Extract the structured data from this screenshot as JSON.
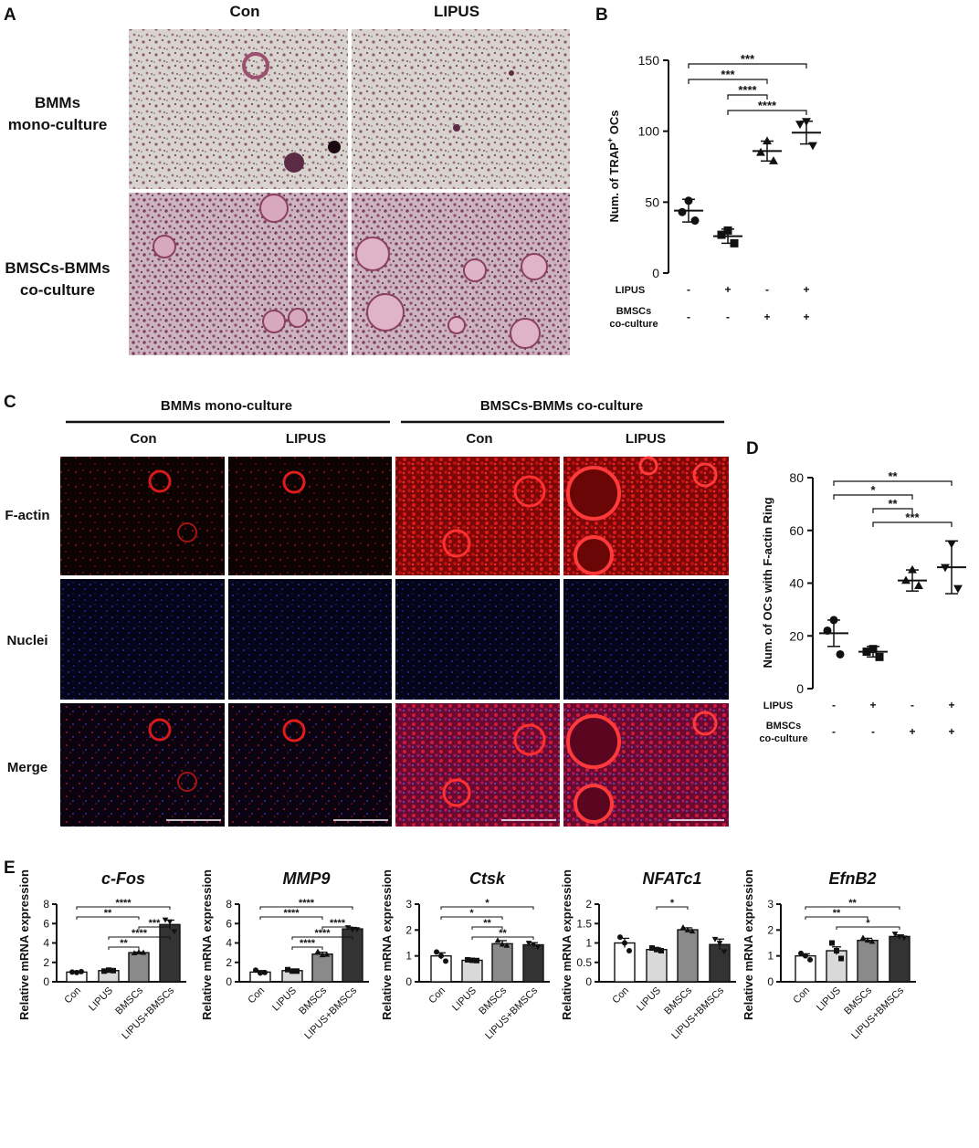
{
  "panels": {
    "A": {
      "letter": "A",
      "col_labels": [
        "Con",
        "LIPUS"
      ],
      "row_labels": [
        [
          "BMMs",
          "mono-culture"
        ],
        [
          "BMSCs-BMMs",
          "co-culture"
        ]
      ]
    },
    "B": {
      "letter": "B",
      "row_labels": {
        "lipus": "LIPUS",
        "bmscs": [
          "BMSCs",
          "co-culture"
        ]
      },
      "signs": {
        "lipus": [
          "-",
          "+",
          "-",
          "+"
        ],
        "bmscs": [
          "-",
          "-",
          "+",
          "+"
        ]
      }
    },
    "C": {
      "letter": "C",
      "group_labels": [
        "BMMs mono-culture",
        "BMSCs-BMMs co-culture"
      ],
      "col_labels": [
        "Con",
        "LIPUS",
        "Con",
        "LIPUS"
      ],
      "row_labels": [
        "F-actin",
        "Nuclei",
        "Merge"
      ]
    },
    "D": {
      "letter": "D",
      "row_labels": {
        "lipus": "LIPUS",
        "bmscs": [
          "BMSCs",
          "co-culture"
        ]
      },
      "signs": {
        "lipus": [
          "-",
          "+",
          "-",
          "+"
        ],
        "bmscs": [
          "-",
          "-",
          "+",
          "+"
        ]
      }
    },
    "E": {
      "letter": "E"
    }
  },
  "chart_data": [
    {
      "id": "B",
      "type": "scatter",
      "ylabel": "Num. of TRAP+ OCs",
      "ylim": [
        0,
        150
      ],
      "yticks": [
        0,
        50,
        100,
        150
      ],
      "groups": [
        "-/-",
        "+/-",
        "-/+",
        "+/+"
      ],
      "markers": [
        "circle",
        "square",
        "triangle",
        "triangle-down"
      ],
      "means": [
        44,
        26,
        86,
        99
      ],
      "sem": [
        8,
        5,
        7,
        8
      ],
      "points": [
        [
          51,
          43,
          37
        ],
        [
          30,
          27,
          21
        ],
        [
          93,
          85,
          79
        ],
        [
          107,
          105,
          90
        ]
      ],
      "significance": [
        {
          "from": 0,
          "to": 3,
          "label": "***"
        },
        {
          "from": 0,
          "to": 2,
          "label": "***"
        },
        {
          "from": 1,
          "to": 2,
          "label": "****"
        },
        {
          "from": 1,
          "to": 3,
          "label": "****"
        }
      ]
    },
    {
      "id": "D",
      "type": "scatter",
      "ylabel": "Num. of OCs with F-actin Ring",
      "ylim": [
        0,
        80
      ],
      "yticks": [
        0,
        20,
        40,
        60,
        80
      ],
      "groups": [
        "-/-",
        "+/-",
        "-/+",
        "+/+"
      ],
      "markers": [
        "circle",
        "square",
        "triangle",
        "triangle-down"
      ],
      "means": [
        21,
        14,
        41,
        46
      ],
      "sem": [
        5,
        2,
        4,
        10
      ],
      "points": [
        [
          26,
          22,
          13
        ],
        [
          15,
          14,
          12
        ],
        [
          45,
          41,
          39
        ],
        [
          55,
          46,
          38
        ]
      ],
      "significance": [
        {
          "from": 0,
          "to": 3,
          "label": "**"
        },
        {
          "from": 0,
          "to": 2,
          "label": "*"
        },
        {
          "from": 1,
          "to": 2,
          "label": "**"
        },
        {
          "from": 1,
          "to": 3,
          "label": "***"
        }
      ]
    },
    {
      "id": "E1",
      "type": "bar",
      "title": "c-Fos",
      "ylabel": "Relative mRNA expression",
      "categories": [
        "Con",
        "LIPUS",
        "BMSCs",
        "LIPUS+BMSCs"
      ],
      "values": [
        1.0,
        1.15,
        3.0,
        5.9
      ],
      "errors": [
        0.05,
        0.1,
        0.06,
        0.45
      ],
      "ylim": [
        0,
        8
      ],
      "yticks": [
        0,
        2,
        4,
        6,
        8
      ],
      "points": [
        [
          1.0,
          0.95,
          1.05
        ],
        [
          1.1,
          1.2,
          1.15
        ],
        [
          2.95,
          3.05,
          3.0
        ],
        [
          6.4,
          6.2,
          5.2
        ]
      ],
      "significance": [
        {
          "from": 0,
          "to": 3,
          "label": "****"
        },
        {
          "from": 0,
          "to": 2,
          "label": "**"
        },
        {
          "from": 2,
          "to": 3,
          "label": "***"
        },
        {
          "from": 1,
          "to": 3,
          "label": "****"
        },
        {
          "from": 1,
          "to": 2,
          "label": "**"
        }
      ]
    },
    {
      "id": "E2",
      "type": "bar",
      "title": "MMP9",
      "ylabel": "Relative mRNA expression",
      "categories": [
        "Con",
        "LIPUS",
        "BMSCs",
        "LIPUS+BMSCs"
      ],
      "values": [
        1.0,
        1.15,
        2.85,
        5.45
      ],
      "errors": [
        0.15,
        0.12,
        0.2,
        0.15
      ],
      "ylim": [
        0,
        8
      ],
      "yticks": [
        0,
        2,
        4,
        6,
        8
      ],
      "points": [
        [
          1.2,
          0.9,
          0.95
        ],
        [
          1.25,
          1.1,
          1.1
        ],
        [
          3.1,
          2.75,
          2.8
        ],
        [
          5.6,
          5.4,
          5.4
        ]
      ],
      "significance": [
        {
          "from": 0,
          "to": 3,
          "label": "****"
        },
        {
          "from": 0,
          "to": 2,
          "label": "****"
        },
        {
          "from": 2,
          "to": 3,
          "label": "****"
        },
        {
          "from": 1,
          "to": 3,
          "label": "****"
        },
        {
          "from": 1,
          "to": 2,
          "label": "****"
        }
      ]
    },
    {
      "id": "E3",
      "type": "bar",
      "title": "Ctsk",
      "ylabel": "Relative mRNA expression",
      "categories": [
        "Con",
        "LIPUS",
        "BMSCs",
        "LIPUS+BMSCs"
      ],
      "values": [
        1.0,
        0.83,
        1.47,
        1.43
      ],
      "errors": [
        0.12,
        0.03,
        0.12,
        0.08
      ],
      "ylim": [
        0,
        3
      ],
      "yticks": [
        0,
        1,
        2,
        3
      ],
      "points": [
        [
          1.15,
          1.0,
          0.8
        ],
        [
          0.85,
          0.83,
          0.82
        ],
        [
          1.6,
          1.45,
          1.4
        ],
        [
          1.5,
          1.45,
          1.35
        ]
      ],
      "significance": [
        {
          "from": 0,
          "to": 3,
          "label": "*"
        },
        {
          "from": 0,
          "to": 2,
          "label": "*"
        },
        {
          "from": 1,
          "to": 2,
          "label": "**"
        },
        {
          "from": 1,
          "to": 3,
          "label": "**"
        }
      ]
    },
    {
      "id": "E4",
      "type": "bar",
      "title": "NFATc1",
      "ylabel": "Relative mRNA expression",
      "categories": [
        "Con",
        "LIPUS",
        "BMSCs",
        "LIPUS+BMSCs"
      ],
      "values": [
        1.0,
        0.83,
        1.34,
        0.96
      ],
      "errors": [
        0.12,
        0.04,
        0.05,
        0.14
      ],
      "ylim": [
        0,
        2.0
      ],
      "yticks": [
        0,
        0.5,
        1.0,
        1.5,
        2.0
      ],
      "points": [
        [
          1.15,
          1.0,
          0.8
        ],
        [
          0.87,
          0.83,
          0.8
        ],
        [
          1.4,
          1.33,
          1.3
        ],
        [
          1.1,
          1.0,
          0.78
        ]
      ],
      "significance": [
        {
          "from": 1,
          "to": 2,
          "label": "*"
        }
      ]
    },
    {
      "id": "E5",
      "type": "bar",
      "title": "EfnB2",
      "ylabel": "Relative mRNA expression",
      "categories": [
        "Con",
        "LIPUS",
        "BMSCs",
        "LIPUS+BMSCs"
      ],
      "values": [
        1.0,
        1.2,
        1.6,
        1.75
      ],
      "errors": [
        0.08,
        0.15,
        0.08,
        0.06
      ],
      "ylim": [
        0,
        3
      ],
      "yticks": [
        0,
        1,
        2,
        3
      ],
      "points": [
        [
          1.1,
          1.0,
          0.85
        ],
        [
          1.5,
          1.2,
          0.9
        ],
        [
          1.7,
          1.6,
          1.55
        ],
        [
          1.85,
          1.75,
          1.7
        ]
      ],
      "significance": [
        {
          "from": 0,
          "to": 3,
          "label": "**"
        },
        {
          "from": 0,
          "to": 2,
          "label": "**"
        },
        {
          "from": 1,
          "to": 3,
          "label": "*"
        }
      ]
    }
  ]
}
